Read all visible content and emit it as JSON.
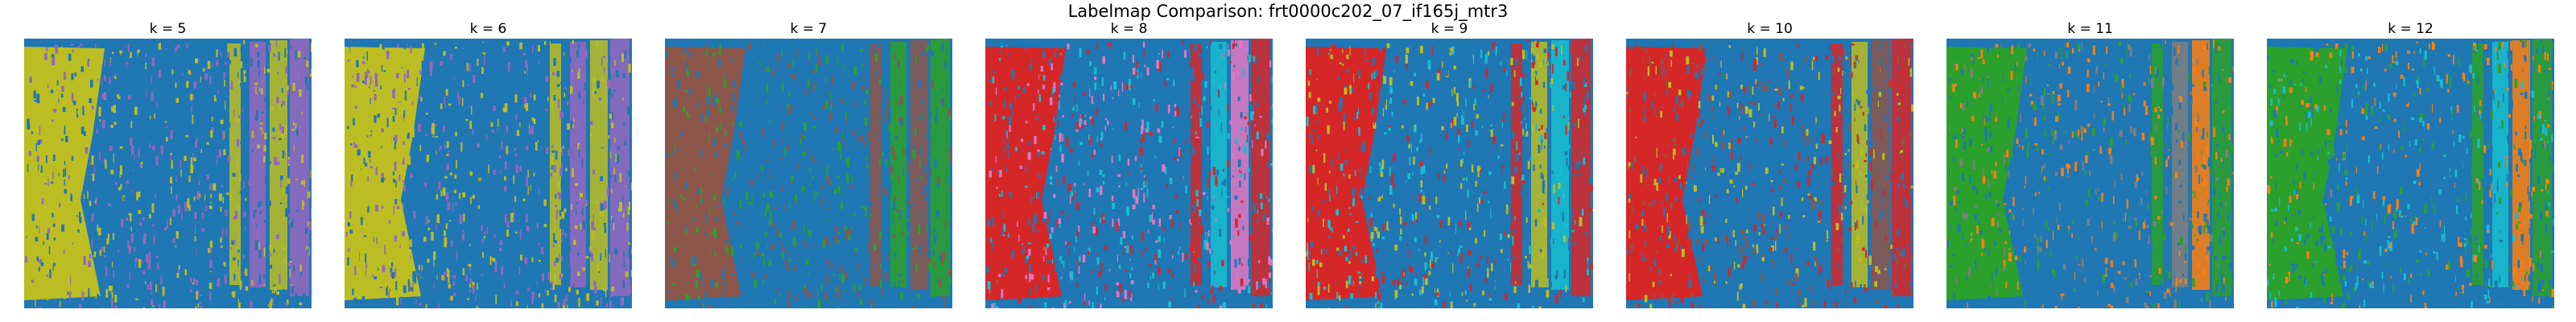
{
  "figure": {
    "title": "Labelmap Comparison: frt0000c202_07_if165j_mtr3"
  },
  "palette": {
    "background_blue": "#1f77b4",
    "yellow": "#bcbd22",
    "purple": "#9467bd",
    "brown": "#8c564b",
    "green": "#2ca02c",
    "red": "#d62728",
    "cyan": "#17becf",
    "pink": "#e377c2",
    "gray": "#7f7f7f",
    "orange": "#ff7f0e"
  },
  "panels": [
    {
      "title": "k = 5",
      "colors": [
        "#bcbd22",
        "#9467bd"
      ]
    },
    {
      "title": "k = 6",
      "colors": [
        "#bcbd22",
        "#9467bd"
      ]
    },
    {
      "title": "k = 7",
      "colors": [
        "#8c564b",
        "#2ca02c"
      ]
    },
    {
      "title": "k = 8",
      "colors": [
        "#d62728",
        "#17becf",
        "#e377c2"
      ]
    },
    {
      "title": "k = 9",
      "colors": [
        "#d62728",
        "#bcbd22",
        "#17becf"
      ]
    },
    {
      "title": "k = 10",
      "colors": [
        "#d62728",
        "#bcbd22",
        "#8c564b"
      ]
    },
    {
      "title": "k = 11",
      "colors": [
        "#2ca02c",
        "#7f7f7f",
        "#ff7f0e"
      ]
    },
    {
      "title": "k = 12",
      "colors": [
        "#2ca02c",
        "#17becf",
        "#ff7f0e"
      ]
    }
  ]
}
